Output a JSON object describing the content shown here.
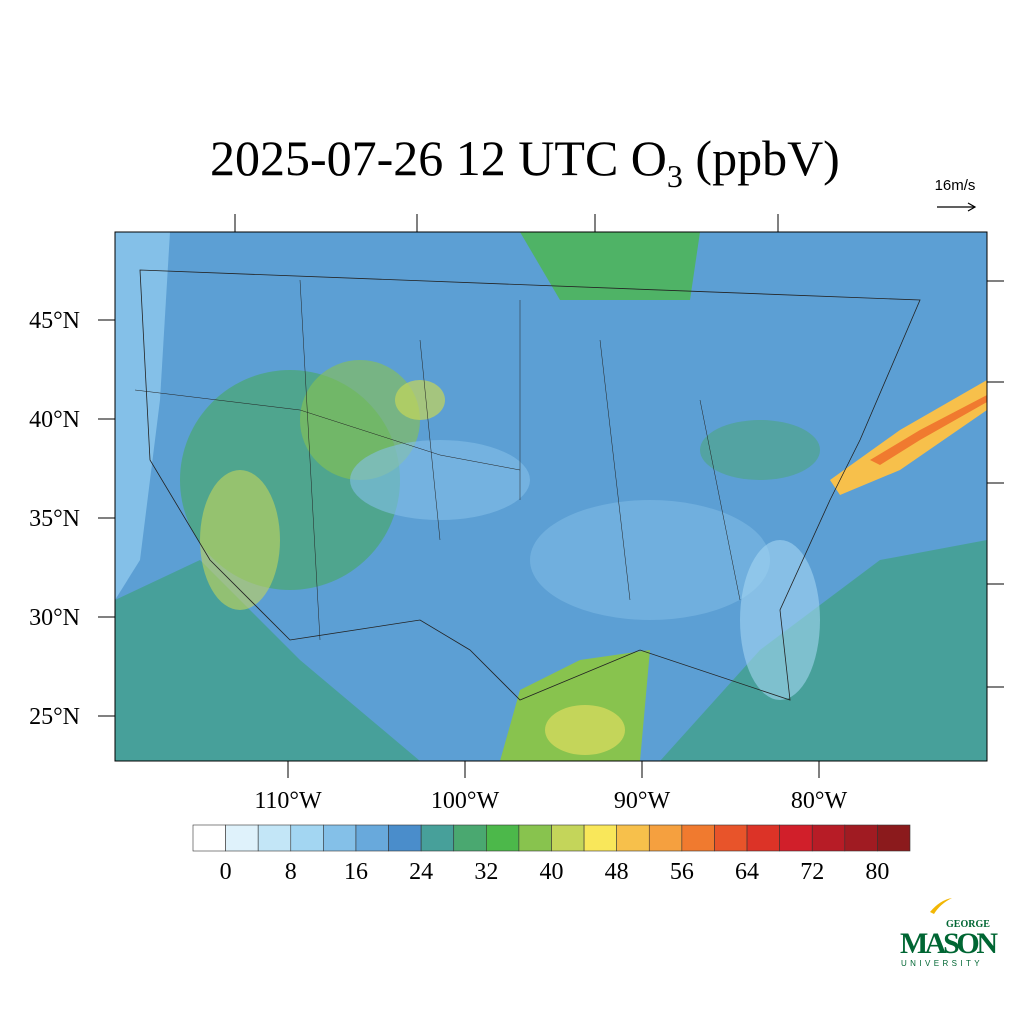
{
  "title": {
    "main": "2025-07-26 12 UTC O",
    "sub": "3",
    "end": " (ppbV)"
  },
  "wind_ref": "16m/s",
  "lat_labels": [
    {
      "value": 45,
      "label": "45°N"
    },
    {
      "value": 40,
      "label": "40°N"
    },
    {
      "value": 35,
      "label": "35°N"
    },
    {
      "value": 30,
      "label": "30°N"
    },
    {
      "value": 25,
      "label": "25°N"
    }
  ],
  "lon_labels": [
    {
      "value": -110,
      "label": "110°W"
    },
    {
      "value": -100,
      "label": "100°W"
    },
    {
      "value": -90,
      "label": "90°W"
    },
    {
      "value": -80,
      "label": "80°W"
    }
  ],
  "colorbar": {
    "ticks": [
      0,
      8,
      16,
      24,
      32,
      40,
      48,
      56,
      64,
      72,
      80
    ],
    "colors": [
      "#ffffff",
      "#dff2fb",
      "#c3e6f7",
      "#a3d6f2",
      "#84c0e8",
      "#68a9dc",
      "#4a8dcb",
      "#47a09a",
      "#4aa870",
      "#4cb84a",
      "#88c34e",
      "#c4d55a",
      "#f9e75a",
      "#f7c04b",
      "#f5a03f",
      "#f07a2f",
      "#e8542a",
      "#dc3327",
      "#d11f2a",
      "#b71c26",
      "#a01b22",
      "#8b1a1c"
    ]
  },
  "logo": {
    "top": "GEORGE",
    "main": "MASON",
    "bottom": "UNIVERSITY"
  }
}
